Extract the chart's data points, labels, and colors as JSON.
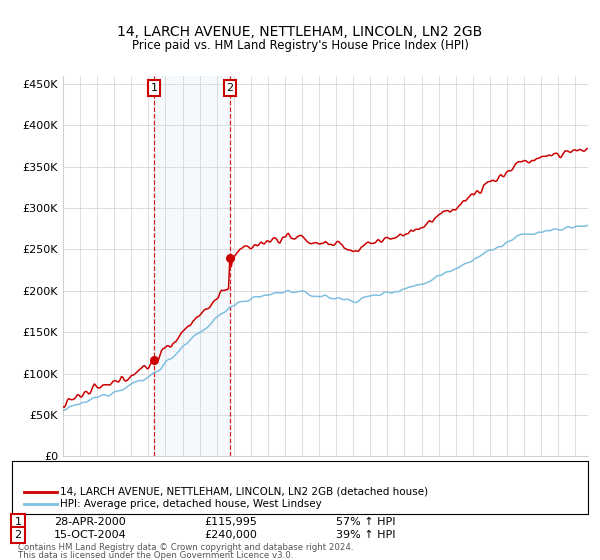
{
  "title": "14, LARCH AVENUE, NETTLEHAM, LINCOLN, LN2 2GB",
  "subtitle": "Price paid vs. HM Land Registry's House Price Index (HPI)",
  "ylim": [
    0,
    460000
  ],
  "yticks": [
    0,
    50000,
    100000,
    150000,
    200000,
    250000,
    300000,
    350000,
    400000,
    450000
  ],
  "ytick_labels": [
    "£0",
    "£50K",
    "£100K",
    "£150K",
    "£200K",
    "£250K",
    "£300K",
    "£350K",
    "£400K",
    "£450K"
  ],
  "xlim_start": 1995.0,
  "xlim_end": 2025.75,
  "transaction1_x": 2000.33,
  "transaction1_y": 115995,
  "transaction2_x": 2004.79,
  "transaction2_y": 240000,
  "transaction1_date": "28-APR-2000",
  "transaction1_price": "£115,995",
  "transaction1_hpi": "57% ↑ HPI",
  "transaction2_date": "15-OCT-2004",
  "transaction2_price": "£240,000",
  "transaction2_hpi": "39% ↑ HPI",
  "hpi_line_color": "#7fbfdf",
  "sale_line_color": "#cc0000",
  "grid_color": "#d0d0d0",
  "background_color": "#ffffff",
  "legend_sale": "14, LARCH AVENUE, NETTLEHAM, LINCOLN, LN2 2GB (detached house)",
  "legend_hpi": "HPI: Average price, detached house, West Lindsey",
  "footer1": "Contains HM Land Registry data © Crown copyright and database right 2024.",
  "footer2": "This data is licensed under the Open Government Licence v3.0."
}
